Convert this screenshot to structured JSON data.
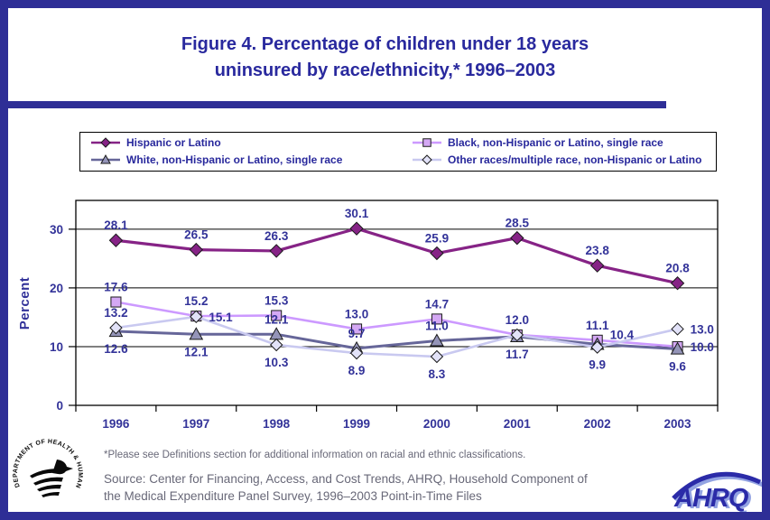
{
  "title": {
    "line1": "Figure 4. Percentage of children under 18 years",
    "line2": "uninsured by race/ethnicity,* 1996–2003"
  },
  "legend": {
    "position": "top",
    "items": [
      {
        "label": "Hispanic or Latino"
      },
      {
        "label": "Black, non-Hispanic or Latino, single race"
      },
      {
        "label": "White, non-Hispanic or Latino, single race"
      },
      {
        "label": "Other races/multiple race, non-Hispanic or Latino"
      }
    ]
  },
  "chart_data": {
    "type": "line",
    "title": "Figure 4. Percentage of children under 18 years uninsured by race/ethnicity,* 1996–2003",
    "x": [
      "1996",
      "1997",
      "1998",
      "1999",
      "2000",
      "2001",
      "2002",
      "2003"
    ],
    "xlabel": "",
    "ylabel": "Percent",
    "yticks": [
      0,
      10,
      20,
      30
    ],
    "ylim": [
      0,
      34.9
    ],
    "grid": "horizontal",
    "legend_position": "top",
    "series": [
      {
        "name": "Hispanic or Latino",
        "values": [
          28.1,
          26.5,
          26.3,
          30.1,
          25.9,
          28.5,
          23.8,
          20.8
        ],
        "color": "#862386",
        "marker_fill": "#862386",
        "marker": "diamond-filled",
        "label_pos": [
          "a",
          "a",
          "a",
          "a",
          "a",
          "a",
          "a",
          "a"
        ]
      },
      {
        "name": "Black, non-Hispanic or Latino, single race",
        "values": [
          17.6,
          15.2,
          15.3,
          13.0,
          14.7,
          12.0,
          11.1,
          10.0
        ],
        "color": "#CC99FF",
        "marker_fill": "#D4A8F4",
        "marker": "square",
        "label_pos": [
          "a",
          "a",
          "a",
          "a",
          "a",
          "a",
          "a",
          "r"
        ]
      },
      {
        "name": "White, non-Hispanic or Latino, single race",
        "values": [
          12.6,
          12.1,
          12.1,
          9.7,
          11.0,
          11.7,
          10.4,
          9.6
        ],
        "color": "#666699",
        "marker_fill": "#9494B8",
        "marker": "triangle",
        "label_pos": [
          "b",
          "b",
          "a",
          "a",
          "a",
          "b",
          "ra",
          "b"
        ]
      },
      {
        "name": "Other races/multiple race, non-Hispanic or Latino",
        "values": [
          13.2,
          15.1,
          10.3,
          8.9,
          8.3,
          12.0,
          9.9,
          13.0
        ],
        "color": "#C9C9F0",
        "marker_fill": "#E2E2F8",
        "marker": "diamond-open",
        "label_pos": [
          "a",
          "r",
          "b",
          "b",
          "b",
          "n",
          "b",
          "r"
        ]
      }
    ]
  },
  "footnote": "*Please see Definitions section for additional information on racial and ethnic classifications.",
  "source": {
    "line1": "Source: Center for Financing, Access, and Cost Trends, AHRQ, Household Component of",
    "line2": "the Medical Expenditure Panel Survey, 1996–2003 Point-in-Time Files"
  },
  "logos": {
    "hhs_seal_text": "DEPARTMENT OF HEALTH & HUMAN SERVICES • USA",
    "ahrq_text": "AHRQ"
  },
  "colors": {
    "frame": "#2E2E96",
    "title_text": "#29299E",
    "axis_text": "#333399",
    "footer_text": "#686878"
  }
}
